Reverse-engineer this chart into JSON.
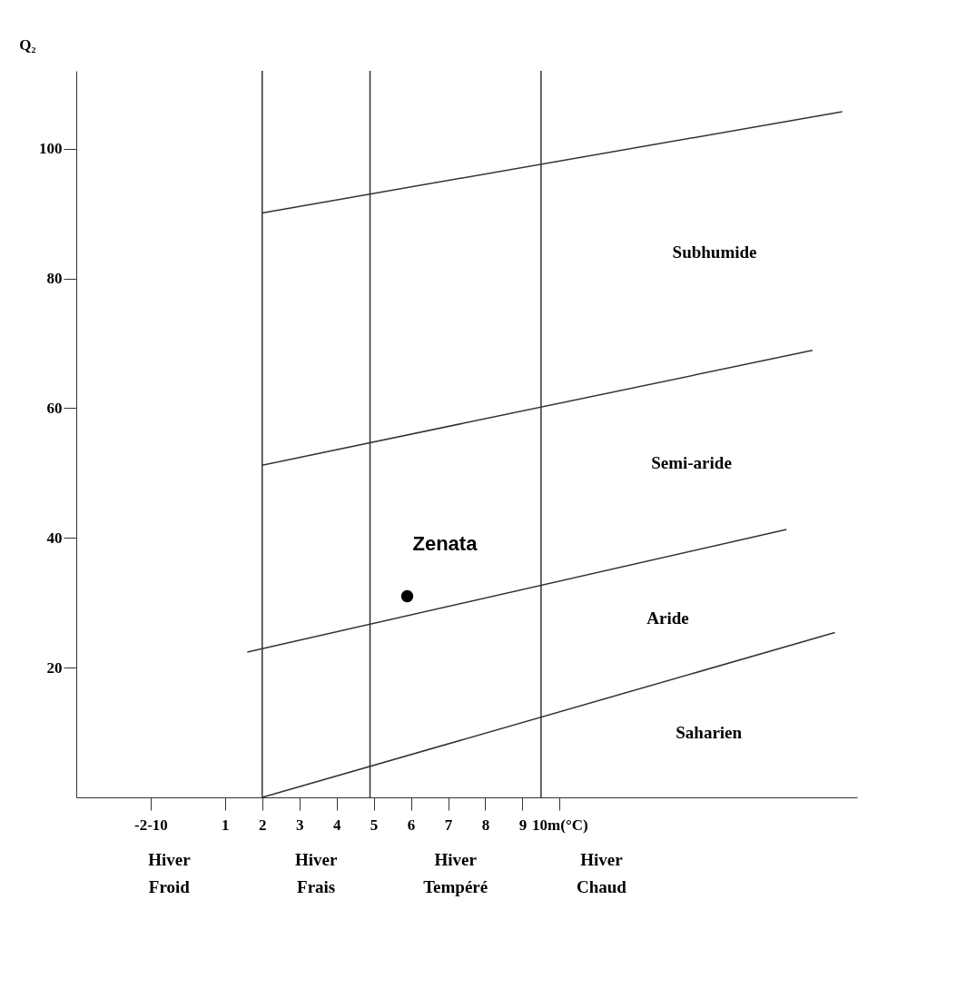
{
  "chart_data": {
    "type": "line",
    "ylabel": "Q₂",
    "xlim": [
      -3,
      18
    ],
    "ylim": [
      0,
      112
    ],
    "xticks": [
      {
        "value": -1,
        "label": "-2-10"
      },
      1,
      2,
      3,
      4,
      5,
      6,
      7,
      8,
      9,
      {
        "value": 10,
        "label": "10m(°C)"
      }
    ],
    "yticks": [
      20,
      40,
      60,
      80,
      100
    ],
    "series": [
      {
        "color": "#333333",
        "x": [
          2,
          17.6
        ],
        "values": [
          90.1,
          105.7
        ]
      },
      {
        "color": "#333333",
        "x": [
          2,
          16.8
        ],
        "values": [
          51.2,
          68.9
        ]
      },
      {
        "color": "#333333",
        "x": [
          1.6,
          16.1
        ],
        "values": [
          22.4,
          41.3
        ]
      },
      {
        "color": "#333333",
        "x": [
          2,
          17.4
        ],
        "values": [
          0,
          25.4
        ]
      },
      {
        "type": "scatter",
        "name": "Zenata",
        "color": "#000000",
        "marker": "circle",
        "x": [
          5.9
        ],
        "values": [
          31
        ]
      }
    ],
    "ref_lines": [
      {
        "axis": "x",
        "value": 2
      },
      {
        "axis": "x",
        "value": 4.9
      },
      {
        "axis": "x",
        "value": 9.5
      }
    ],
    "annotations": [
      "Subhumide",
      "Semi-aride",
      "Aride",
      "Saharien",
      "Hiver Froid",
      "Hiver Frais",
      "Hiver Tempéré",
      "Hiver Chaud"
    ],
    "line_style": "solid",
    "grid": false
  }
}
